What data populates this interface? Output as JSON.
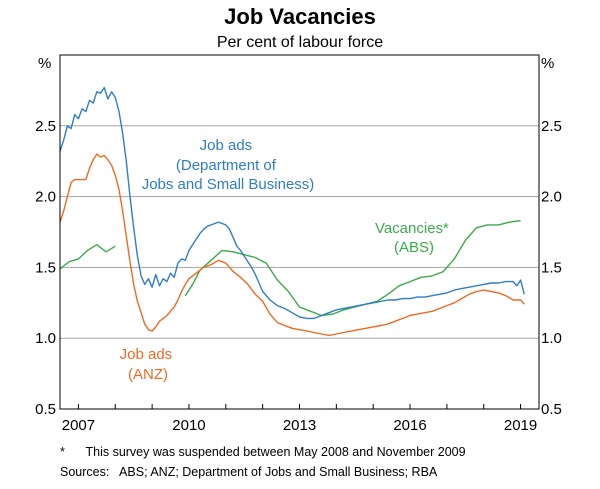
{
  "chart_data": {
    "type": "line",
    "title": "Job Vacancies",
    "subtitle": "Per cent of labour force",
    "ylabel_left": "%",
    "ylabel_right": "%",
    "ylim": [
      0.5,
      3.0
    ],
    "yticks": [
      0.5,
      1.0,
      1.5,
      2.0,
      2.5
    ],
    "ytick_labels": [
      "0.5",
      "1.0",
      "1.5",
      "2.0",
      "2.5"
    ],
    "xlim": [
      2006.5,
      2019.5
    ],
    "xticks": [
      2007,
      2010,
      2013,
      2016,
      2019
    ],
    "xtick_labels": [
      "2007",
      "2010",
      "2013",
      "2016",
      "2019"
    ],
    "grid": true,
    "series": [
      {
        "name": "Job ads (Department of Jobs and Small Business)",
        "label_lines": [
          "Job ads",
          "(Department of",
          "Jobs and Small Business)"
        ],
        "color": "#2f7ec4",
        "points": [
          [
            2006.5,
            2.32
          ],
          [
            2006.6,
            2.4
          ],
          [
            2006.7,
            2.5
          ],
          [
            2006.8,
            2.48
          ],
          [
            2006.9,
            2.58
          ],
          [
            2007.0,
            2.55
          ],
          [
            2007.1,
            2.62
          ],
          [
            2007.2,
            2.6
          ],
          [
            2007.3,
            2.68
          ],
          [
            2007.4,
            2.66
          ],
          [
            2007.5,
            2.74
          ],
          [
            2007.6,
            2.73
          ],
          [
            2007.7,
            2.77
          ],
          [
            2007.8,
            2.69
          ],
          [
            2007.9,
            2.74
          ],
          [
            2008.0,
            2.7
          ],
          [
            2008.1,
            2.6
          ],
          [
            2008.2,
            2.45
          ],
          [
            2008.3,
            2.25
          ],
          [
            2008.4,
            2.0
          ],
          [
            2008.5,
            1.78
          ],
          [
            2008.6,
            1.58
          ],
          [
            2008.7,
            1.44
          ],
          [
            2008.8,
            1.38
          ],
          [
            2008.9,
            1.42
          ],
          [
            2009.0,
            1.36
          ],
          [
            2009.1,
            1.45
          ],
          [
            2009.2,
            1.37
          ],
          [
            2009.3,
            1.42
          ],
          [
            2009.4,
            1.4
          ],
          [
            2009.5,
            1.46
          ],
          [
            2009.6,
            1.43
          ],
          [
            2009.7,
            1.53
          ],
          [
            2009.8,
            1.56
          ],
          [
            2009.9,
            1.55
          ],
          [
            2010.0,
            1.62
          ],
          [
            2010.1,
            1.66
          ],
          [
            2010.2,
            1.7
          ],
          [
            2010.3,
            1.74
          ],
          [
            2010.4,
            1.77
          ],
          [
            2010.5,
            1.79
          ],
          [
            2010.6,
            1.8
          ],
          [
            2010.7,
            1.81
          ],
          [
            2010.8,
            1.82
          ],
          [
            2010.9,
            1.81
          ],
          [
            2011.0,
            1.8
          ],
          [
            2011.1,
            1.77
          ],
          [
            2011.2,
            1.71
          ],
          [
            2011.3,
            1.65
          ],
          [
            2011.4,
            1.62
          ],
          [
            2011.5,
            1.58
          ],
          [
            2011.6,
            1.54
          ],
          [
            2011.7,
            1.5
          ],
          [
            2011.8,
            1.45
          ],
          [
            2011.9,
            1.39
          ],
          [
            2012.0,
            1.33
          ],
          [
            2012.2,
            1.27
          ],
          [
            2012.4,
            1.23
          ],
          [
            2012.6,
            1.21
          ],
          [
            2012.8,
            1.18
          ],
          [
            2013.0,
            1.15
          ],
          [
            2013.2,
            1.14
          ],
          [
            2013.4,
            1.14
          ],
          [
            2013.6,
            1.16
          ],
          [
            2013.8,
            1.18
          ],
          [
            2014.0,
            1.2
          ],
          [
            2014.2,
            1.21
          ],
          [
            2014.4,
            1.22
          ],
          [
            2014.6,
            1.23
          ],
          [
            2014.8,
            1.24
          ],
          [
            2015.0,
            1.25
          ],
          [
            2015.2,
            1.26
          ],
          [
            2015.4,
            1.27
          ],
          [
            2015.6,
            1.27
          ],
          [
            2015.8,
            1.28
          ],
          [
            2016.0,
            1.28
          ],
          [
            2016.2,
            1.29
          ],
          [
            2016.4,
            1.29
          ],
          [
            2016.6,
            1.3
          ],
          [
            2016.8,
            1.31
          ],
          [
            2017.0,
            1.32
          ],
          [
            2017.2,
            1.34
          ],
          [
            2017.4,
            1.35
          ],
          [
            2017.6,
            1.36
          ],
          [
            2017.8,
            1.37
          ],
          [
            2018.0,
            1.38
          ],
          [
            2018.2,
            1.39
          ],
          [
            2018.4,
            1.39
          ],
          [
            2018.6,
            1.4
          ],
          [
            2018.8,
            1.4
          ],
          [
            2018.9,
            1.37
          ],
          [
            2019.0,
            1.41
          ],
          [
            2019.1,
            1.31
          ]
        ]
      },
      {
        "name": "Job ads (ANZ)",
        "label_lines": [
          "Job ads",
          "(ANZ)"
        ],
        "color": "#ee6a24",
        "points": [
          [
            2006.5,
            1.82
          ],
          [
            2006.6,
            1.9
          ],
          [
            2006.7,
            2.0
          ],
          [
            2006.8,
            2.1
          ],
          [
            2006.9,
            2.12
          ],
          [
            2007.0,
            2.12
          ],
          [
            2007.1,
            2.12
          ],
          [
            2007.2,
            2.12
          ],
          [
            2007.3,
            2.2
          ],
          [
            2007.4,
            2.26
          ],
          [
            2007.5,
            2.3
          ],
          [
            2007.6,
            2.28
          ],
          [
            2007.7,
            2.29
          ],
          [
            2007.8,
            2.26
          ],
          [
            2007.9,
            2.22
          ],
          [
            2008.0,
            2.15
          ],
          [
            2008.1,
            2.05
          ],
          [
            2008.2,
            1.9
          ],
          [
            2008.3,
            1.72
          ],
          [
            2008.4,
            1.54
          ],
          [
            2008.5,
            1.38
          ],
          [
            2008.6,
            1.26
          ],
          [
            2008.7,
            1.18
          ],
          [
            2008.8,
            1.1
          ],
          [
            2008.9,
            1.06
          ],
          [
            2009.0,
            1.05
          ],
          [
            2009.1,
            1.08
          ],
          [
            2009.2,
            1.12
          ],
          [
            2009.3,
            1.14
          ],
          [
            2009.4,
            1.16
          ],
          [
            2009.5,
            1.19
          ],
          [
            2009.6,
            1.22
          ],
          [
            2009.7,
            1.27
          ],
          [
            2009.8,
            1.33
          ],
          [
            2009.9,
            1.38
          ],
          [
            2010.0,
            1.42
          ],
          [
            2010.2,
            1.46
          ],
          [
            2010.4,
            1.5
          ],
          [
            2010.6,
            1.52
          ],
          [
            2010.8,
            1.55
          ],
          [
            2011.0,
            1.53
          ],
          [
            2011.2,
            1.47
          ],
          [
            2011.4,
            1.43
          ],
          [
            2011.6,
            1.38
          ],
          [
            2011.8,
            1.31
          ],
          [
            2012.0,
            1.26
          ],
          [
            2012.2,
            1.17
          ],
          [
            2012.4,
            1.11
          ],
          [
            2012.6,
            1.09
          ],
          [
            2012.8,
            1.07
          ],
          [
            2013.0,
            1.06
          ],
          [
            2013.2,
            1.05
          ],
          [
            2013.4,
            1.04
          ],
          [
            2013.6,
            1.03
          ],
          [
            2013.8,
            1.02
          ],
          [
            2014.0,
            1.03
          ],
          [
            2014.2,
            1.04
          ],
          [
            2014.4,
            1.05
          ],
          [
            2014.6,
            1.06
          ],
          [
            2014.8,
            1.07
          ],
          [
            2015.0,
            1.08
          ],
          [
            2015.2,
            1.09
          ],
          [
            2015.4,
            1.1
          ],
          [
            2015.6,
            1.12
          ],
          [
            2015.8,
            1.14
          ],
          [
            2016.0,
            1.16
          ],
          [
            2016.2,
            1.17
          ],
          [
            2016.4,
            1.18
          ],
          [
            2016.6,
            1.19
          ],
          [
            2016.8,
            1.21
          ],
          [
            2017.0,
            1.23
          ],
          [
            2017.2,
            1.25
          ],
          [
            2017.4,
            1.28
          ],
          [
            2017.6,
            1.31
          ],
          [
            2017.8,
            1.33
          ],
          [
            2018.0,
            1.34
          ],
          [
            2018.2,
            1.33
          ],
          [
            2018.4,
            1.32
          ],
          [
            2018.6,
            1.3
          ],
          [
            2018.8,
            1.27
          ],
          [
            2019.0,
            1.27
          ],
          [
            2019.1,
            1.24
          ]
        ]
      },
      {
        "name": "Vacancies* (ABS)",
        "label_lines": [
          "Vacancies*",
          "(ABS)"
        ],
        "color": "#3cab4a",
        "segments": [
          [
            [
              2006.5,
              1.49
            ],
            [
              2006.75,
              1.54
            ],
            [
              2007.0,
              1.56
            ],
            [
              2007.25,
              1.62
            ],
            [
              2007.5,
              1.66
            ],
            [
              2007.75,
              1.61
            ],
            [
              2008.0,
              1.65
            ]
          ],
          [
            [
              2009.9,
              1.3
            ],
            [
              2010.1,
              1.38
            ],
            [
              2010.3,
              1.48
            ],
            [
              2010.6,
              1.55
            ],
            [
              2010.9,
              1.62
            ],
            [
              2011.2,
              1.61
            ],
            [
              2011.5,
              1.59
            ],
            [
              2011.8,
              1.57
            ],
            [
              2012.1,
              1.53
            ],
            [
              2012.4,
              1.41
            ],
            [
              2012.7,
              1.33
            ],
            [
              2013.0,
              1.22
            ],
            [
              2013.3,
              1.19
            ],
            [
              2013.6,
              1.16
            ],
            [
              2013.9,
              1.17
            ],
            [
              2014.2,
              1.2
            ],
            [
              2014.5,
              1.22
            ],
            [
              2014.8,
              1.24
            ],
            [
              2015.1,
              1.26
            ],
            [
              2015.4,
              1.31
            ],
            [
              2015.7,
              1.37
            ],
            [
              2016.0,
              1.4
            ],
            [
              2016.3,
              1.43
            ],
            [
              2016.6,
              1.44
            ],
            [
              2016.9,
              1.47
            ],
            [
              2017.2,
              1.56
            ],
            [
              2017.5,
              1.69
            ],
            [
              2017.8,
              1.78
            ],
            [
              2018.1,
              1.8
            ],
            [
              2018.4,
              1.8
            ],
            [
              2018.7,
              1.82
            ],
            [
              2019.0,
              1.83
            ]
          ]
        ]
      }
    ],
    "footnote": "*      This survey was suspended between May 2008 and November 2009",
    "sources": "Sources:   ABS; ANZ; Department of Jobs and Small Business; RBA"
  }
}
